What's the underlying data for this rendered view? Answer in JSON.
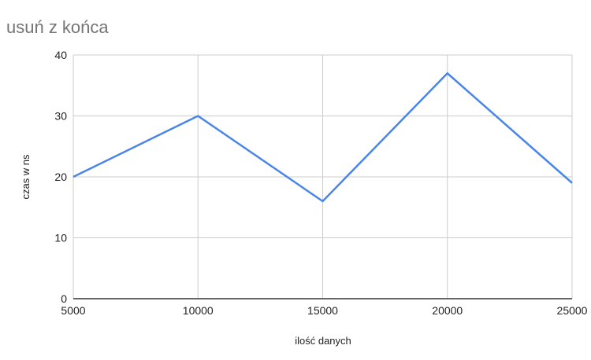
{
  "chart_data": {
    "type": "line",
    "title": "usuń z końca",
    "xlabel": "ilość danych",
    "ylabel": "czas w ns",
    "x": [
      5000,
      10000,
      15000,
      20000,
      25000
    ],
    "x_tick_labels": [
      "5000",
      "10000",
      "15000",
      "20000",
      "25000"
    ],
    "y_ticks": [
      0,
      10,
      20,
      30,
      40
    ],
    "y_tick_labels": [
      "0",
      "10",
      "20",
      "30",
      "40"
    ],
    "xlim": [
      5000,
      25000
    ],
    "ylim": [
      0,
      40
    ],
    "grid": true,
    "series": [
      {
        "color": "#4a86e8",
        "values": [
          20,
          30,
          16,
          37,
          19
        ]
      }
    ],
    "colors": {
      "line": "#4a86e8",
      "grid": "#cccccc",
      "axis": "#333333",
      "title": "#757575"
    }
  }
}
